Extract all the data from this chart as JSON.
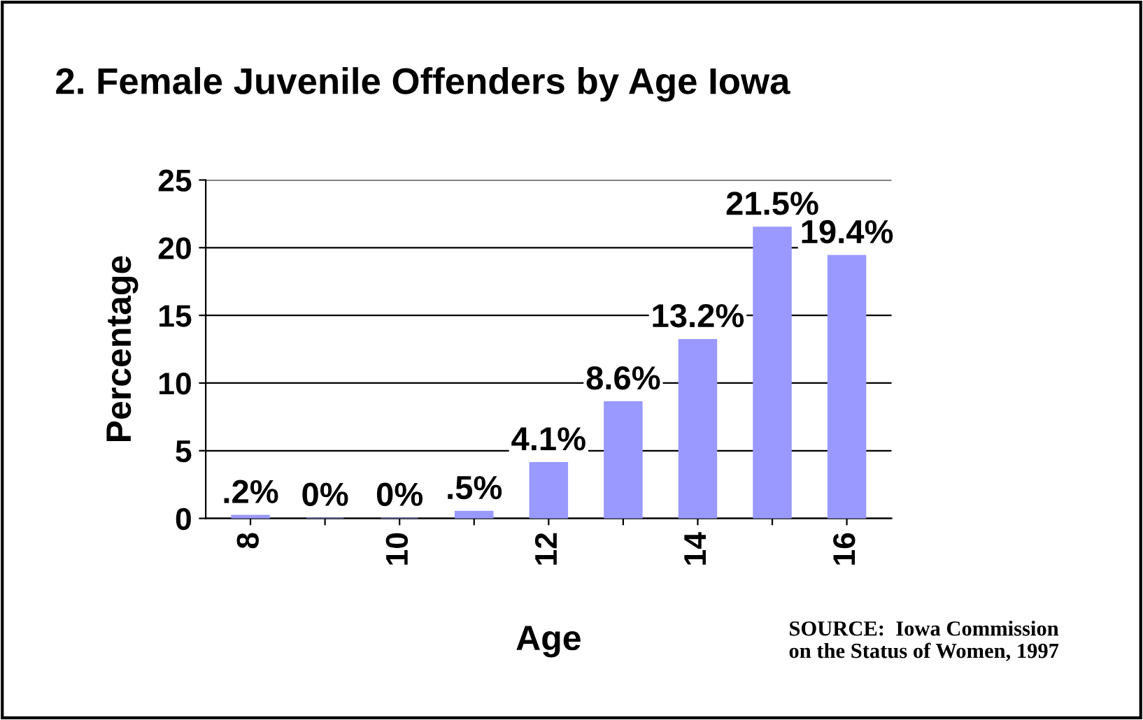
{
  "chart_data": {
    "type": "bar",
    "title": "2. Female Juvenile Offenders by Age Iowa",
    "xlabel": "Age",
    "ylabel": "Percentage",
    "categories": [
      "8",
      null,
      "10",
      null,
      "12",
      null,
      "14",
      null,
      "16"
    ],
    "values": [
      0.2,
      0,
      0,
      0.5,
      4.1,
      8.6,
      13.2,
      21.5,
      19.4
    ],
    "value_labels": [
      ".2%",
      "0%",
      "0%",
      ".5%",
      "4.1%",
      "8.6%",
      "13.2%",
      "21.5%",
      "19.4%"
    ],
    "color": "#9999ff",
    "ylim": [
      0,
      25
    ],
    "yticks": [
      0,
      5,
      10,
      15,
      20,
      25
    ],
    "grid": "y",
    "legend": false,
    "annotations": [
      "SOURCE:  Iowa Commission\non the Status of Women, 1997"
    ]
  }
}
